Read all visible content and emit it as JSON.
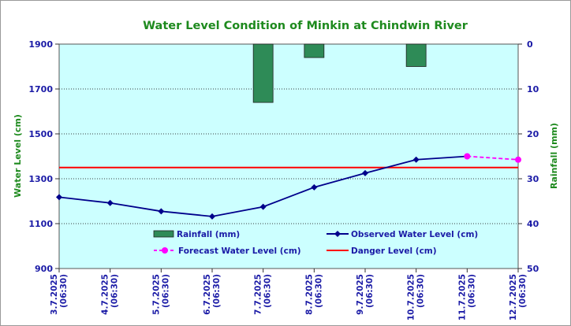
{
  "chart_data": {
    "type": "bar+line",
    "title": "Water Level Condition of Minkin at Chindwin River",
    "ylabel_left": "Water Level (cm)",
    "ylabel_right": "Rainfall (mm)",
    "categories": [
      "3.7.2025",
      "4.7.2025",
      "5.7.2025",
      "6.7.2025",
      "7.7.2025",
      "8.7.2025",
      "9.7.2025",
      "10.7.2025",
      "11.7.2025",
      "12.7.2025"
    ],
    "time_label": "(06:30)",
    "ylim_left": [
      900,
      1900
    ],
    "yticks_left": [
      900,
      1100,
      1300,
      1500,
      1700,
      1900
    ],
    "ylim_right_reversed": [
      0,
      50
    ],
    "yticks_right": [
      0,
      10,
      20,
      30,
      40,
      50
    ],
    "grid": true,
    "legend_placement": "bottom-center",
    "series": [
      {
        "name": "Rainfall (mm)",
        "kind": "bar",
        "axis": "right",
        "color": "#2e8b57",
        "values": [
          null,
          null,
          null,
          null,
          13,
          3,
          null,
          5,
          null,
          null
        ],
        "note_positions": "bar index"
      },
      {
        "name": "Observed Water Level (cm)",
        "kind": "line",
        "axis": "left",
        "color": "#00008b",
        "values": [
          1218,
          1192,
          1155,
          1132,
          1175,
          1262,
          1325,
          1385,
          1400,
          null
        ]
      },
      {
        "name": "Forecast Water Level (cm)",
        "kind": "dashed-line",
        "axis": "left",
        "color": "#ff00ff",
        "values": [
          null,
          null,
          null,
          null,
          null,
          null,
          null,
          null,
          1400,
          1385
        ]
      },
      {
        "name": "Danger Level (cm)",
        "kind": "hline",
        "axis": "left",
        "color": "#ff0000",
        "value": 1350
      }
    ],
    "colors": {
      "plot_bg": "#ccffff",
      "axis_text": "#1a1aa6",
      "title": "#1e8a1e"
    }
  }
}
